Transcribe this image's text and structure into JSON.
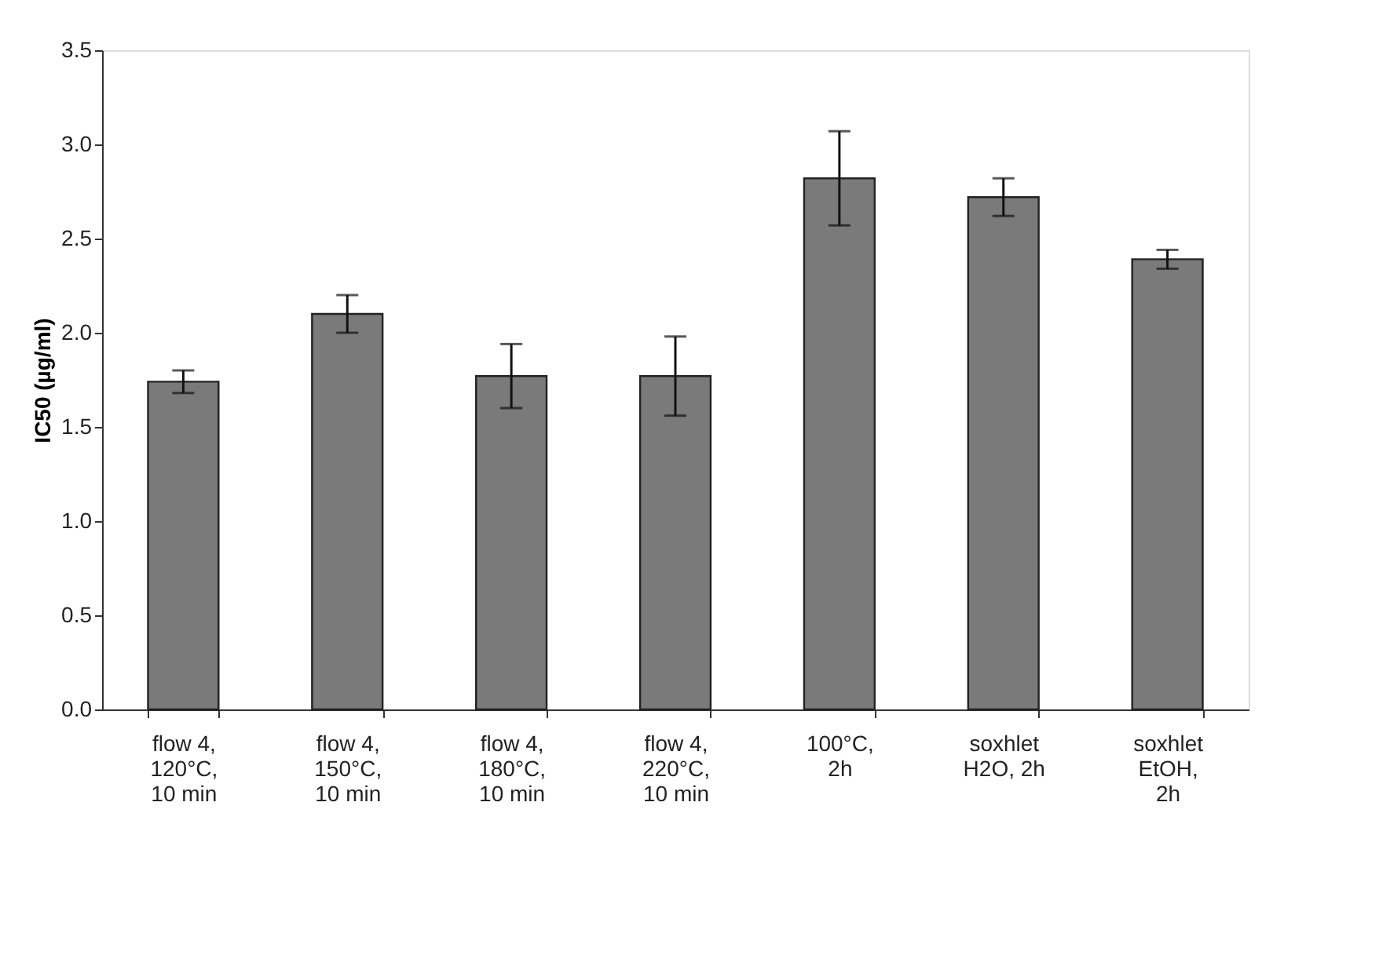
{
  "chart_data": {
    "type": "bar",
    "ylabel": "IC50 (µg/ml)",
    "categories": [
      "flow 4,\n120°C,\n10 min",
      "flow 4,\n150°C,\n10 min",
      "flow 4,\n180°C,\n10 min",
      "flow 4,\n220°C,\n10 min",
      "100°C,\n2h",
      "soxhlet\nH2O, 2h",
      "soxhlet\nEtOH,\n2h"
    ],
    "values": [
      1.74,
      2.1,
      1.77,
      1.77,
      2.82,
      2.72,
      2.39
    ],
    "errors": [
      0.06,
      0.1,
      0.17,
      0.21,
      0.25,
      0.1,
      0.05
    ],
    "color": "#7a7a7a",
    "ylim": [
      0,
      3.5
    ],
    "yticks": [
      {
        "value": 0,
        "label": "0.0"
      },
      0.5,
      {
        "value": 1,
        "label": "1.0"
      },
      1.5,
      {
        "value": 2,
        "label": "2.0"
      },
      2.5,
      {
        "value": 3,
        "label": "3.0"
      },
      3.5
    ],
    "grid": false
  }
}
